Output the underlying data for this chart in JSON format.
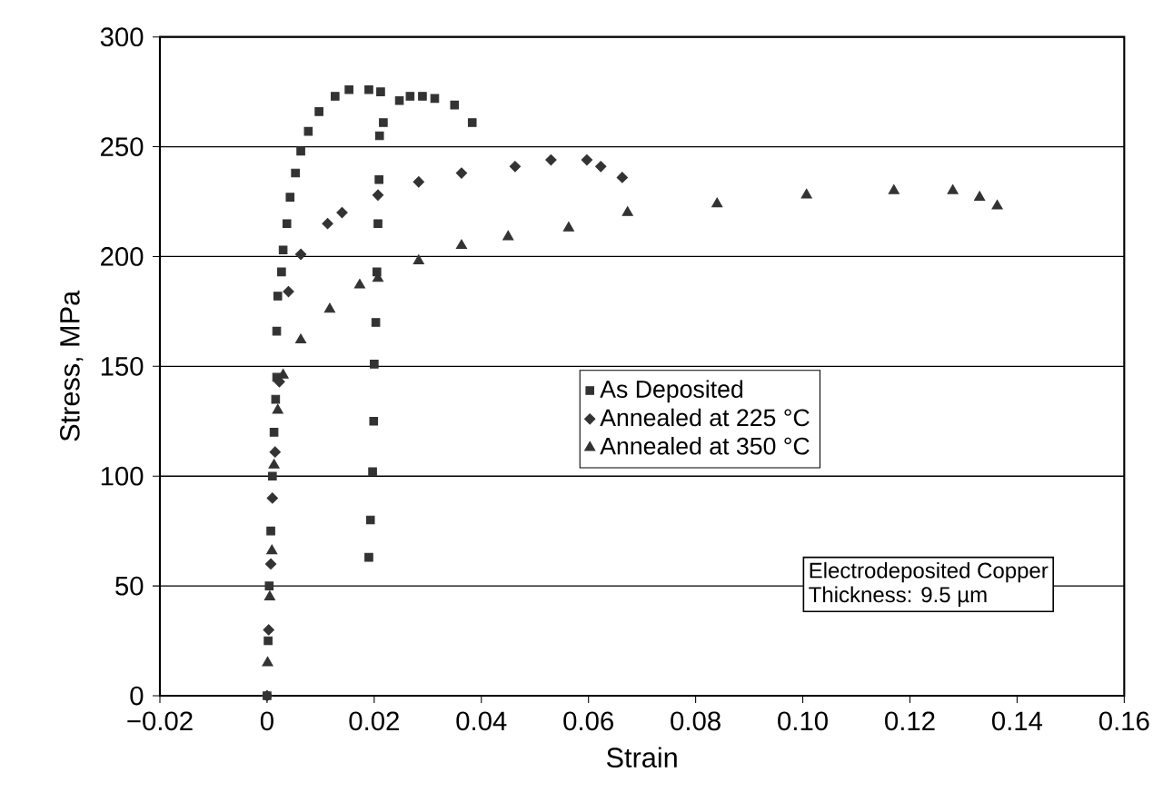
{
  "chart_data": {
    "type": "scatter",
    "xlabel": "Strain",
    "ylabel": "Stress, MPa",
    "xlim": [
      -0.02,
      0.16
    ],
    "ylim": [
      0,
      300
    ],
    "xticks": [
      {
        "value": -0.02,
        "label": "−0.02"
      },
      0,
      0.02,
      0.04,
      0.06,
      0.08,
      {
        "value": 0.1,
        "label": "0.10"
      },
      0.12,
      0.14,
      0.16
    ],
    "yticks": [
      0,
      50,
      100,
      150,
      200,
      250,
      300
    ],
    "grid": "y",
    "legend": "center",
    "annotations": [
      "Electrodeposited Copper",
      "Thickness: 9.5 µm"
    ],
    "series": [
      {
        "name": "As Deposited",
        "color": "#333333",
        "marker": "square",
        "x": [
          0,
          0.0002,
          0.0004,
          0.0007,
          0.001,
          0.0013,
          0.0016,
          0.0018,
          0.0018,
          0.002,
          0.0027,
          0.003,
          0.0037,
          0.0043,
          0.0053,
          0.0063,
          0.0077,
          0.0097,
          0.0127,
          0.0153,
          0.019,
          0.019,
          0.0193,
          0.0197,
          0.0199,
          0.02,
          0.0203,
          0.0205,
          0.0207,
          0.0209,
          0.021,
          0.0212,
          0.0217,
          0.0247,
          0.0267,
          0.029,
          0.0313,
          0.035,
          0.0383
        ],
        "values": [
          0,
          25,
          50,
          75,
          100,
          120,
          135,
          145,
          166,
          182,
          193,
          203,
          215,
          227,
          238,
          248,
          257,
          266,
          273,
          276,
          276,
          63,
          80,
          102,
          125,
          151,
          170,
          193,
          215,
          235,
          255,
          275,
          261,
          271,
          273,
          273,
          272,
          269,
          261
        ]
      },
      {
        "name": "Annealed at 225 °C",
        "color": "#333333",
        "marker": "diamond",
        "x": [
          0,
          0.0003,
          0.0007,
          0.001,
          0.0015,
          0.0023,
          0.004,
          0.0063,
          0.0113,
          0.014,
          0.0207,
          0.0283,
          0.0363,
          0.0463,
          0.053,
          0.0597,
          0.0623,
          0.0663
        ],
        "values": [
          0,
          30,
          60,
          90,
          111,
          143,
          184,
          201,
          215,
          220,
          228,
          234,
          238,
          241,
          244,
          244,
          241,
          236
        ]
      },
      {
        "name": "Annealed at 350 °C",
        "color": "#333333",
        "marker": "triangle",
        "x": [
          0.0001,
          0.0005,
          0.0009,
          0.0013,
          0.002,
          0.003,
          0.0063,
          0.0117,
          0.0173,
          0.0207,
          0.0283,
          0.0363,
          0.045,
          0.0563,
          0.0673,
          0.084,
          0.1007,
          0.117,
          0.128,
          0.133,
          0.1363
        ],
        "values": [
          15,
          45,
          66,
          105,
          130,
          146,
          162,
          176,
          187,
          190,
          198,
          205,
          209,
          213,
          220,
          224,
          228,
          230,
          230,
          227,
          223
        ]
      }
    ]
  }
}
